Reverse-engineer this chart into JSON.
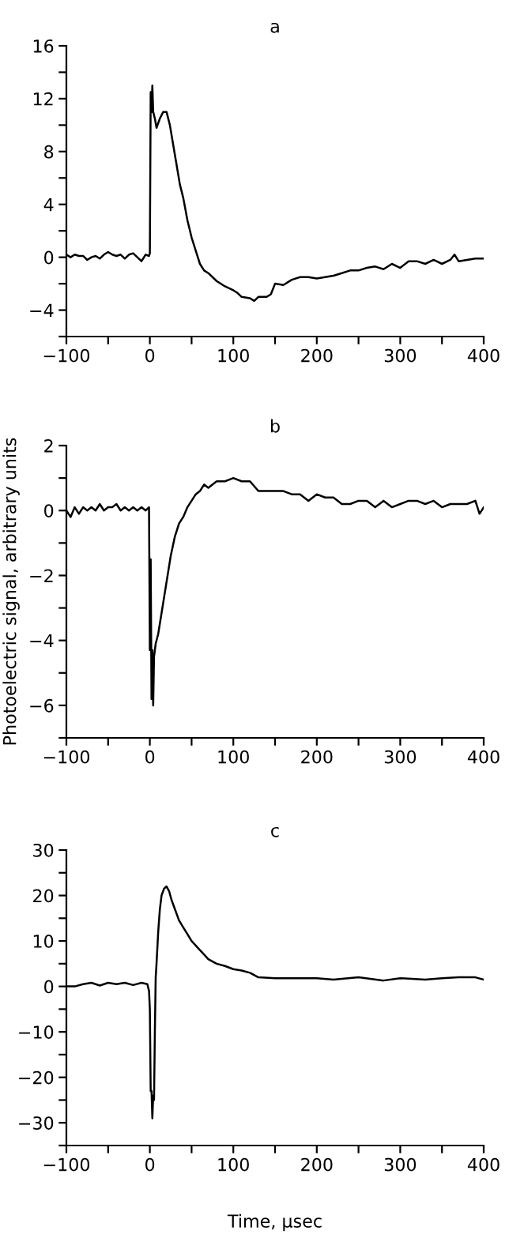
{
  "chart_data": [
    {
      "type": "line",
      "title": "a",
      "xlim": [
        -100,
        400
      ],
      "ylim": [
        -6,
        16
      ],
      "xticks": [
        -100,
        {
          "value": -50,
          "label": null
        },
        0,
        {
          "value": 50,
          "label": null
        },
        100,
        {
          "value": 150,
          "label": null
        },
        200,
        {
          "value": 250,
          "label": null
        },
        300,
        {
          "value": 350,
          "label": null
        },
        400
      ],
      "yticks": [
        {
          "value": -6,
          "label": null
        },
        -4,
        {
          "value": -2,
          "label": null
        },
        0,
        {
          "value": 2,
          "label": null
        },
        4,
        {
          "value": 6,
          "label": null
        },
        8,
        {
          "value": 10,
          "label": null
        },
        12,
        {
          "value": 14,
          "label": null
        },
        16
      ],
      "grid": false,
      "legend": false,
      "marker": "none",
      "line_style": "solid",
      "series": [
        {
          "color": "#000000",
          "x": [
            -100,
            -95,
            -90,
            -85,
            -80,
            -75,
            -70,
            -65,
            -60,
            -55,
            -50,
            -45,
            -40,
            -35,
            -30,
            -25,
            -20,
            -15,
            -10,
            -5,
            -1,
            0,
            1,
            2,
            3,
            4,
            6,
            8,
            12,
            16,
            20,
            24,
            28,
            32,
            36,
            40,
            45,
            50,
            55,
            60,
            65,
            70,
            80,
            90,
            100,
            105,
            110,
            120,
            125,
            130,
            140,
            145,
            150,
            160,
            170,
            180,
            190,
            200,
            210,
            220,
            230,
            240,
            250,
            260,
            270,
            280,
            290,
            300,
            310,
            320,
            330,
            340,
            350,
            360,
            365,
            370,
            380,
            390,
            400
          ],
          "values": [
            0.2,
            0.0,
            0.2,
            0.1,
            0.1,
            -0.2,
            0.0,
            0.1,
            -0.1,
            0.2,
            0.4,
            0.2,
            0.1,
            0.2,
            -0.1,
            0.2,
            0.3,
            0.0,
            -0.3,
            0.2,
            0.1,
            0.3,
            12.5,
            11.0,
            13.0,
            11.0,
            10.5,
            9.8,
            10.5,
            11.0,
            11.0,
            10.0,
            8.5,
            7.0,
            5.5,
            4.5,
            2.8,
            1.5,
            0.5,
            -0.5,
            -1.0,
            -1.2,
            -1.8,
            -2.2,
            -2.5,
            -2.7,
            -3.0,
            -3.1,
            -3.3,
            -3.0,
            -3.0,
            -2.8,
            -2.0,
            -2.1,
            -1.7,
            -1.5,
            -1.5,
            -1.6,
            -1.5,
            -1.4,
            -1.2,
            -1.0,
            -1.0,
            -0.8,
            -0.7,
            -0.9,
            -0.5,
            -0.8,
            -0.3,
            -0.3,
            -0.5,
            -0.2,
            -0.5,
            -0.2,
            0.2,
            -0.3,
            -0.2,
            -0.1,
            -0.1
          ]
        }
      ]
    },
    {
      "type": "line",
      "title": "b",
      "ylabel": "Photoelectric signal, arbitrary units",
      "xlim": [
        -100,
        400
      ],
      "ylim": [
        -7,
        2
      ],
      "xticks": [
        -100,
        {
          "value": -50,
          "label": null
        },
        0,
        {
          "value": 50,
          "label": null
        },
        100,
        {
          "value": 150,
          "label": null
        },
        200,
        {
          "value": 250,
          "label": null
        },
        300,
        {
          "value": 350,
          "label": null
        },
        400
      ],
      "yticks": [
        {
          "value": -7,
          "label": null
        },
        -6,
        {
          "value": -5,
          "label": null
        },
        -4,
        {
          "value": -3,
          "label": null
        },
        -2,
        {
          "value": -1,
          "label": null
        },
        0,
        {
          "value": 1,
          "label": null
        },
        2
      ],
      "grid": false,
      "legend": false,
      "marker": "none",
      "line_style": "solid",
      "series": [
        {
          "color": "#000000",
          "x": [
            -100,
            -95,
            -90,
            -85,
            -80,
            -75,
            -70,
            -65,
            -60,
            -55,
            -50,
            -45,
            -40,
            -35,
            -30,
            -25,
            -20,
            -15,
            -10,
            -5,
            -1,
            0,
            1,
            2,
            3,
            4,
            5,
            7,
            10,
            15,
            20,
            25,
            30,
            35,
            40,
            45,
            50,
            55,
            60,
            65,
            70,
            80,
            90,
            100,
            110,
            120,
            130,
            140,
            150,
            160,
            170,
            180,
            190,
            200,
            210,
            220,
            230,
            240,
            250,
            260,
            270,
            280,
            290,
            300,
            310,
            320,
            330,
            340,
            350,
            360,
            370,
            380,
            390,
            395,
            400
          ],
          "values": [
            0.0,
            -0.2,
            0.1,
            -0.1,
            0.1,
            0.0,
            0.1,
            0.0,
            0.2,
            0.0,
            0.1,
            0.1,
            0.2,
            0.0,
            0.1,
            0.0,
            0.1,
            0.0,
            0.1,
            0.0,
            0.1,
            -4.3,
            -1.5,
            -5.8,
            -4.3,
            -6.0,
            -4.5,
            -4.1,
            -3.8,
            -3.0,
            -2.2,
            -1.4,
            -0.8,
            -0.4,
            -0.2,
            0.1,
            0.3,
            0.5,
            0.6,
            0.8,
            0.7,
            0.9,
            0.9,
            1.0,
            0.9,
            0.9,
            0.6,
            0.6,
            0.6,
            0.6,
            0.5,
            0.5,
            0.3,
            0.5,
            0.4,
            0.4,
            0.2,
            0.2,
            0.3,
            0.3,
            0.1,
            0.3,
            0.1,
            0.2,
            0.3,
            0.3,
            0.2,
            0.3,
            0.1,
            0.2,
            0.2,
            0.2,
            0.3,
            -0.1,
            0.1
          ]
        }
      ]
    },
    {
      "type": "line",
      "title": "c",
      "xlabel": "Time, µsec",
      "xlim": [
        -100,
        400
      ],
      "ylim": [
        -35,
        30
      ],
      "xticks": [
        -100,
        {
          "value": -50,
          "label": null
        },
        0,
        {
          "value": 50,
          "label": null
        },
        100,
        {
          "value": 150,
          "label": null
        },
        200,
        {
          "value": 250,
          "label": null
        },
        300,
        {
          "value": 350,
          "label": null
        },
        400
      ],
      "yticks": [
        {
          "value": -35,
          "label": null
        },
        -30,
        {
          "value": -25,
          "label": null
        },
        -20,
        {
          "value": -15,
          "label": null
        },
        -10,
        {
          "value": -5,
          "label": null
        },
        0,
        {
          "value": 5,
          "label": null
        },
        10,
        {
          "value": 15,
          "label": null
        },
        20,
        {
          "value": 25,
          "label": null
        },
        30
      ],
      "grid": false,
      "legend": false,
      "marker": "none",
      "line_style": "solid",
      "series": [
        {
          "color": "#000000",
          "x": [
            -100,
            -90,
            -80,
            -70,
            -60,
            -50,
            -40,
            -30,
            -20,
            -10,
            -3,
            -1,
            0,
            1,
            2,
            3,
            4,
            5,
            6,
            7,
            8,
            10,
            12,
            14,
            17,
            20,
            23,
            26,
            30,
            35,
            40,
            45,
            50,
            60,
            70,
            80,
            90,
            100,
            110,
            120,
            130,
            150,
            170,
            200,
            220,
            250,
            280,
            300,
            330,
            350,
            370,
            390,
            400
          ],
          "values": [
            0.0,
            0.0,
            0.5,
            0.8,
            0.2,
            0.8,
            0.5,
            0.8,
            0.3,
            0.8,
            0.5,
            -1.0,
            -5.0,
            -23.0,
            -23.0,
            -29.0,
            -24.0,
            -25.0,
            -10.0,
            2.0,
            5.0,
            12.0,
            17.0,
            20.0,
            21.5,
            22.0,
            21.0,
            19.0,
            17.0,
            14.5,
            13.0,
            11.5,
            10.0,
            8.0,
            6.0,
            5.0,
            4.5,
            3.8,
            3.5,
            3.0,
            2.0,
            1.8,
            1.8,
            1.8,
            1.5,
            2.0,
            1.3,
            1.8,
            1.5,
            1.8,
            2.0,
            2.0,
            1.5
          ]
        }
      ]
    }
  ]
}
